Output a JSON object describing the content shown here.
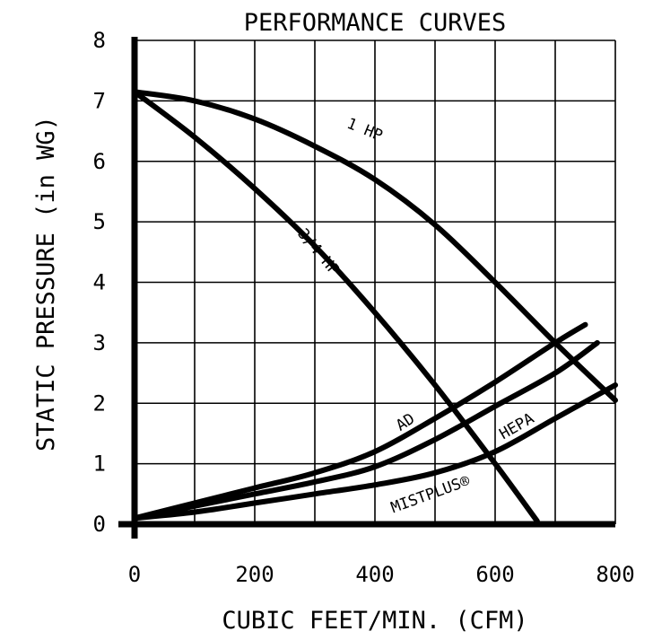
{
  "chart_data": {
    "type": "line",
    "title": "PERFORMANCE CURVES",
    "xlabel": "CUBIC FEET/MIN. (CFM)",
    "ylabel": "STATIC PRESSURE (in WG)",
    "xlim": [
      0,
      800
    ],
    "ylim": [
      0,
      8
    ],
    "x_ticks": [
      0,
      200,
      400,
      600,
      800
    ],
    "y_ticks": [
      0,
      1,
      2,
      3,
      4,
      5,
      6,
      7,
      8
    ],
    "grid": true,
    "series": [
      {
        "name": "1 HP",
        "x": [
          0,
          100,
          200,
          300,
          400,
          500,
          600,
          700,
          800
        ],
        "y": [
          7.15,
          7.0,
          6.7,
          6.25,
          5.7,
          4.95,
          4.0,
          3.0,
          2.05
        ]
      },
      {
        "name": "3/4 HP",
        "x": [
          0,
          100,
          200,
          300,
          400,
          500,
          600,
          670
        ],
        "y": [
          7.15,
          6.4,
          5.55,
          4.6,
          3.5,
          2.3,
          1.0,
          0.05
        ]
      },
      {
        "name": "AD",
        "x": [
          0,
          100,
          200,
          300,
          400,
          500,
          600,
          700,
          750
        ],
        "y": [
          0.1,
          0.35,
          0.6,
          0.85,
          1.2,
          1.75,
          2.35,
          3.0,
          3.3
        ]
      },
      {
        "name": "HEPA",
        "x": [
          0,
          100,
          200,
          300,
          400,
          500,
          600,
          700,
          770
        ],
        "y": [
          0.1,
          0.3,
          0.5,
          0.7,
          0.95,
          1.4,
          1.95,
          2.5,
          3.0
        ]
      },
      {
        "name": "MISTPLUS®",
        "x": [
          0,
          100,
          200,
          300,
          400,
          500,
          600,
          700,
          800
        ],
        "y": [
          0.1,
          0.2,
          0.35,
          0.5,
          0.65,
          0.85,
          1.2,
          1.75,
          2.3
        ]
      }
    ]
  }
}
